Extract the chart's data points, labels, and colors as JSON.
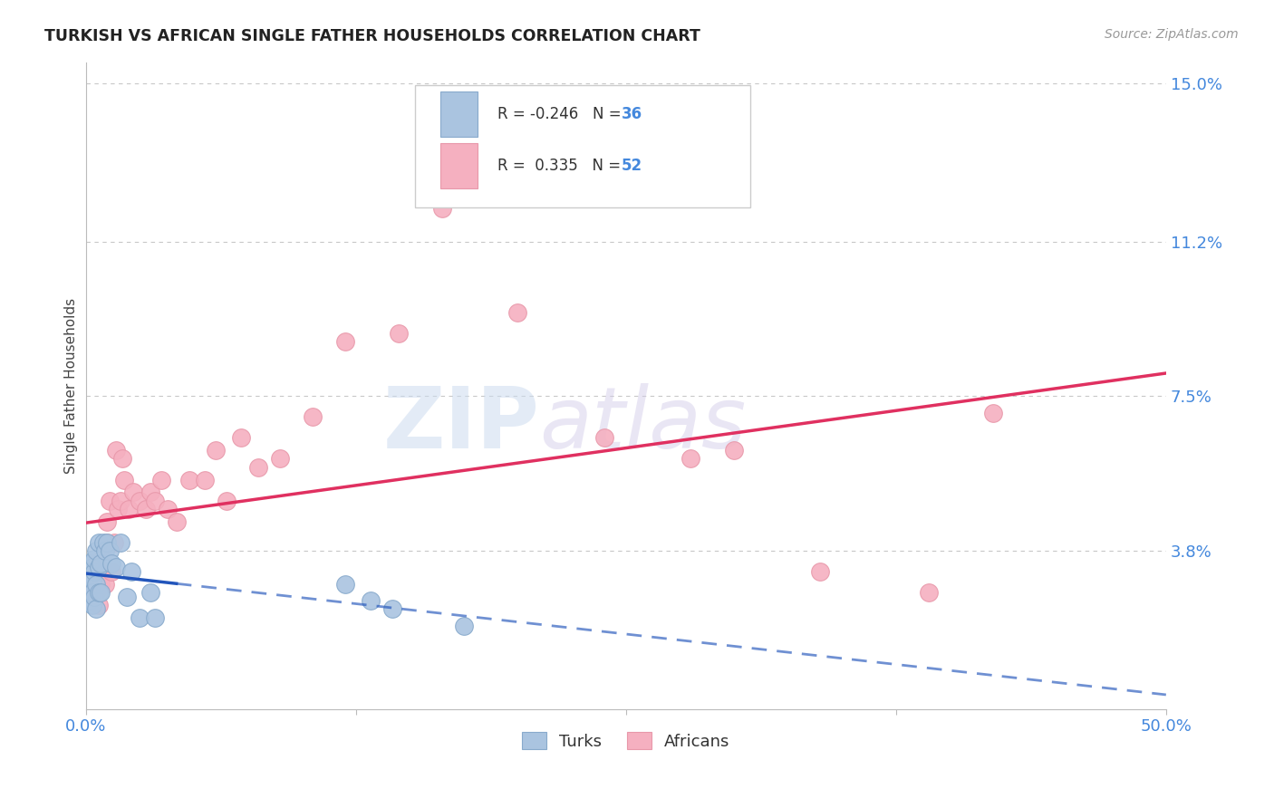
{
  "title": "TURKISH VS AFRICAN SINGLE FATHER HOUSEHOLDS CORRELATION CHART",
  "source": "Source: ZipAtlas.com",
  "ylabel": "Single Father Households",
  "xlim": [
    0.0,
    0.5
  ],
  "ylim": [
    0.0,
    0.155
  ],
  "ytick_vals": [
    0.038,
    0.075,
    0.112,
    0.15
  ],
  "ytick_labels": [
    "3.8%",
    "7.5%",
    "11.2%",
    "15.0%"
  ],
  "xtick_vals": [
    0.0,
    0.125,
    0.25,
    0.375,
    0.5
  ],
  "xtick_labels": [
    "0.0%",
    "",
    "",
    "",
    "50.0%"
  ],
  "background_color": "#ffffff",
  "grid_color": "#c8c8c8",
  "turks_color": "#aac4e0",
  "turks_edge_color": "#88aacc",
  "africans_color": "#f5b0c0",
  "africans_edge_color": "#e898aa",
  "turks_line_color": "#2255bb",
  "africans_line_color": "#e03060",
  "turks_R": -0.246,
  "turks_N": 36,
  "africans_R": 0.335,
  "africans_N": 52,
  "turks_x": [
    0.001,
    0.001,
    0.002,
    0.002,
    0.002,
    0.003,
    0.003,
    0.003,
    0.003,
    0.004,
    0.004,
    0.004,
    0.005,
    0.005,
    0.005,
    0.006,
    0.006,
    0.006,
    0.007,
    0.007,
    0.008,
    0.009,
    0.01,
    0.011,
    0.012,
    0.014,
    0.016,
    0.019,
    0.021,
    0.025,
    0.03,
    0.032,
    0.12,
    0.132,
    0.142,
    0.175
  ],
  "turks_y": [
    0.028,
    0.033,
    0.026,
    0.032,
    0.035,
    0.025,
    0.031,
    0.028,
    0.034,
    0.027,
    0.033,
    0.036,
    0.024,
    0.03,
    0.038,
    0.028,
    0.034,
    0.04,
    0.028,
    0.035,
    0.04,
    0.038,
    0.04,
    0.038,
    0.035,
    0.034,
    0.04,
    0.027,
    0.033,
    0.022,
    0.028,
    0.022,
    0.03,
    0.026,
    0.024,
    0.02
  ],
  "africans_x": [
    0.001,
    0.002,
    0.002,
    0.003,
    0.003,
    0.004,
    0.004,
    0.005,
    0.005,
    0.006,
    0.006,
    0.007,
    0.008,
    0.008,
    0.009,
    0.01,
    0.01,
    0.011,
    0.012,
    0.013,
    0.014,
    0.015,
    0.016,
    0.017,
    0.018,
    0.02,
    0.022,
    0.025,
    0.028,
    0.03,
    0.032,
    0.035,
    0.038,
    0.042,
    0.048,
    0.055,
    0.06,
    0.065,
    0.072,
    0.08,
    0.09,
    0.105,
    0.12,
    0.145,
    0.165,
    0.2,
    0.24,
    0.28,
    0.3,
    0.34,
    0.39,
    0.42
  ],
  "africans_y": [
    0.03,
    0.028,
    0.033,
    0.028,
    0.035,
    0.03,
    0.033,
    0.028,
    0.032,
    0.025,
    0.033,
    0.03,
    0.033,
    0.038,
    0.03,
    0.04,
    0.045,
    0.05,
    0.033,
    0.04,
    0.062,
    0.048,
    0.05,
    0.06,
    0.055,
    0.048,
    0.052,
    0.05,
    0.048,
    0.052,
    0.05,
    0.055,
    0.048,
    0.045,
    0.055,
    0.055,
    0.062,
    0.05,
    0.065,
    0.058,
    0.06,
    0.07,
    0.088,
    0.09,
    0.12,
    0.095,
    0.065,
    0.06,
    0.062,
    0.033,
    0.028,
    0.071
  ],
  "turks_line_x0": 0.0,
  "turks_line_x_solid_end": 0.042,
  "turks_line_x1": 0.5,
  "africans_line_x0": 0.0,
  "africans_line_x1": 0.5
}
